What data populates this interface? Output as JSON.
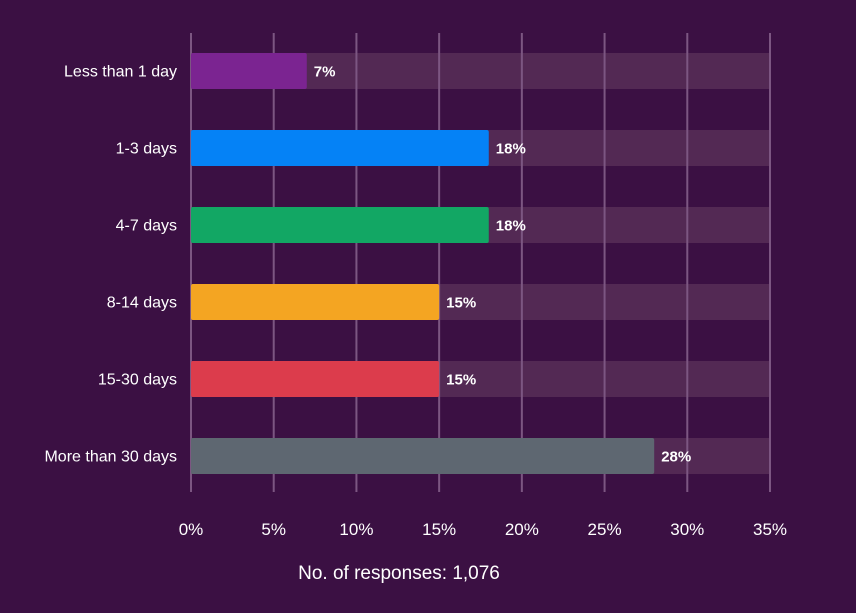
{
  "chart_data": {
    "type": "bar",
    "orientation": "horizontal",
    "categories": [
      "Less than 1 day",
      "1-3 days",
      "4-7 days",
      "8-14 days",
      "15-30 days",
      "More than 30 days"
    ],
    "values": [
      7,
      18,
      18,
      15,
      15,
      28
    ],
    "value_labels": [
      "7%",
      "18%",
      "18%",
      "15%",
      "15%",
      "28%"
    ],
    "colors": [
      "#7b2491",
      "#0582f6",
      "#12a764",
      "#f4a522",
      "#dc3c4c",
      "#5e6771"
    ],
    "track_color": "#532954",
    "grid_color": "#7c5682",
    "xlim": [
      0,
      35
    ],
    "xticks": [
      0,
      5,
      10,
      15,
      20,
      25,
      30,
      35
    ],
    "xtick_labels": [
      "0%",
      "5%",
      "10%",
      "15%",
      "20%",
      "25%",
      "30%",
      "35%"
    ],
    "grid": true,
    "title": "",
    "xlabel": "",
    "ylabel": ""
  },
  "footnote": "No. of responses: 1,076"
}
